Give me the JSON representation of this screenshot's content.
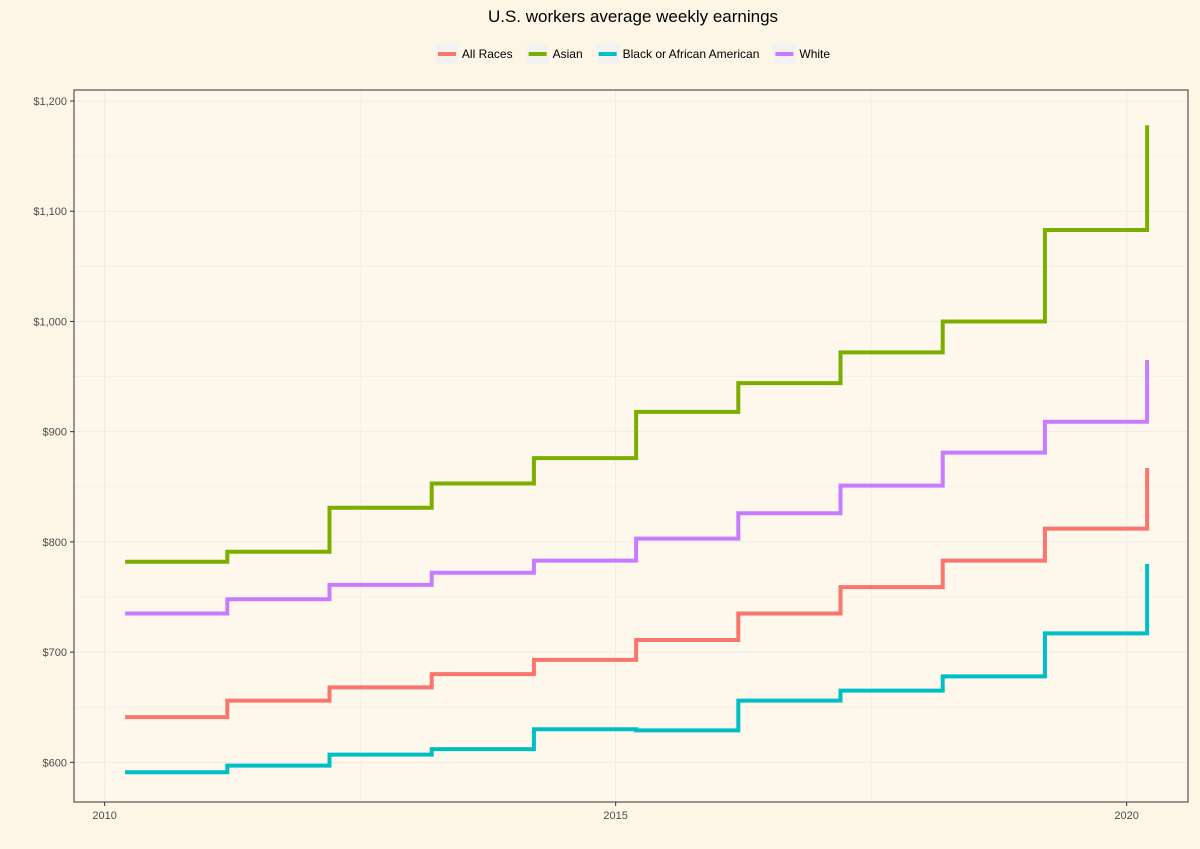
{
  "chart_data": {
    "type": "line",
    "step": true,
    "title": "U.S. workers average weekly earnings",
    "xlabel": "",
    "ylabel": "",
    "legend_position": "top",
    "x": [
      2010.2,
      2011.2,
      2012.2,
      2013.2,
      2014.2,
      2015.2,
      2016.2,
      2017.2,
      2018.2,
      2019.2,
      2020.2
    ],
    "xlim": [
      2009.7,
      2020.6
    ],
    "x_ticks": [
      2010,
      2015,
      2020
    ],
    "x_tick_labels": [
      "2010",
      "2015",
      "2020"
    ],
    "ylim": [
      564,
      1210
    ],
    "y_ticks": [
      600,
      700,
      800,
      900,
      1000,
      1100,
      1200
    ],
    "y_tick_labels": [
      "$600",
      "$700",
      "$800",
      "$900",
      "$1,000",
      "$1,100",
      "$1,200"
    ],
    "grid": true,
    "series": [
      {
        "name": "All Races",
        "color": "#F8766D",
        "values": [
          641,
          656,
          668,
          680,
          693,
          711,
          735,
          759,
          783,
          812,
          867
        ]
      },
      {
        "name": "Asian",
        "color": "#7CAE00",
        "values": [
          782,
          791,
          831,
          853,
          876,
          918,
          944,
          972,
          1000,
          1083,
          1178
        ]
      },
      {
        "name": "Black or African American",
        "color": "#00BFC4",
        "values": [
          591,
          597,
          607,
          612,
          630,
          629,
          656,
          665,
          678,
          717,
          780
        ]
      },
      {
        "name": "White",
        "color": "#C77CFF",
        "values": [
          735,
          748,
          761,
          772,
          783,
          803,
          826,
          851,
          881,
          909,
          965
        ]
      }
    ]
  }
}
